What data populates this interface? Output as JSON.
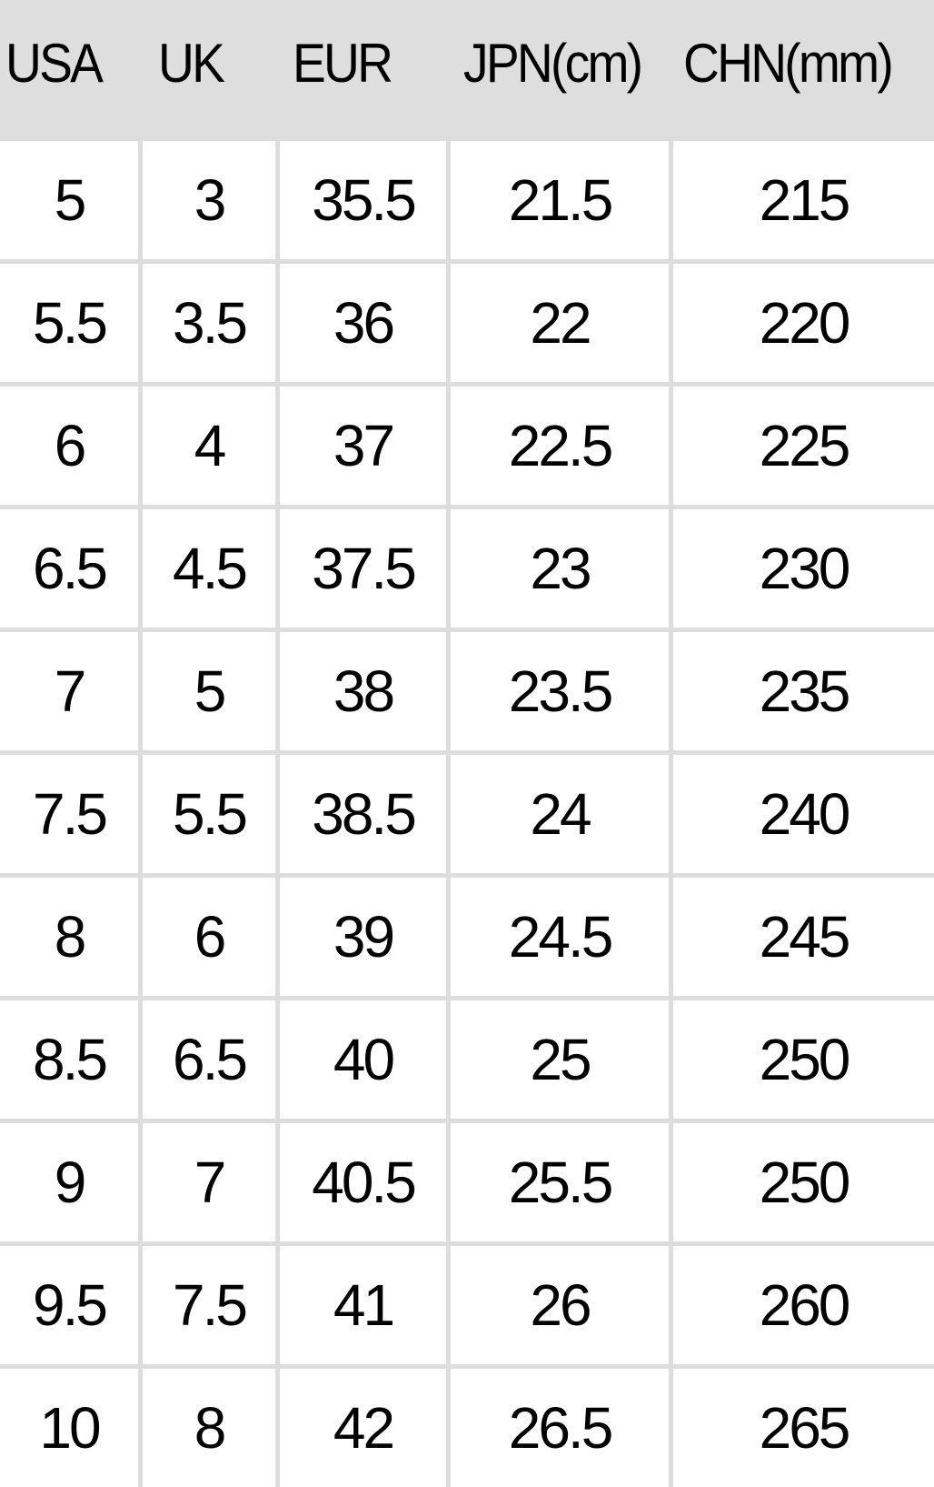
{
  "table": {
    "headers": [
      "USA",
      "UK",
      "EUR",
      "JPN(cm)",
      "CHN(mm)"
    ],
    "rows": [
      [
        "5",
        "3",
        "35.5",
        "21.5",
        "215"
      ],
      [
        "5.5",
        "3.5",
        "36",
        "22",
        "220"
      ],
      [
        "6",
        "4",
        "37",
        "22.5",
        "225"
      ],
      [
        "6.5",
        "4.5",
        "37.5",
        "23",
        "230"
      ],
      [
        "7",
        "5",
        "38",
        "23.5",
        "235"
      ],
      [
        "7.5",
        "5.5",
        "38.5",
        "24",
        "240"
      ],
      [
        "8",
        "6",
        "39",
        "24.5",
        "245"
      ],
      [
        "8.5",
        "6.5",
        "40",
        "25",
        "250"
      ],
      [
        "9",
        "7",
        "40.5",
        "25.5",
        "250"
      ],
      [
        "9.5",
        "7.5",
        "41",
        "26",
        "260"
      ],
      [
        "10",
        "8",
        "42",
        "26.5",
        "265"
      ]
    ]
  },
  "colors": {
    "header_bg": "#dedede",
    "grid_line": "#dddddd",
    "text": "#000000"
  }
}
